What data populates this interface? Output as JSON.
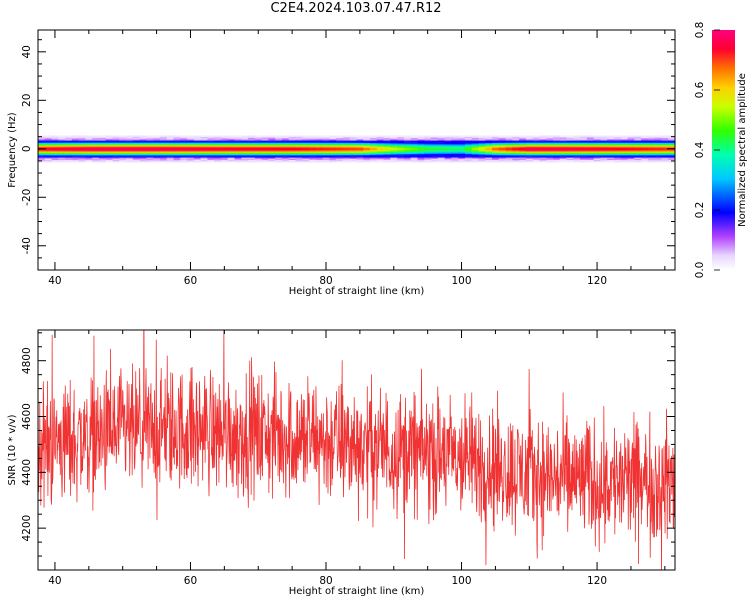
{
  "title": "C2E4.2024.103.07.47.R12",
  "chart_data": [
    {
      "type": "heatmap",
      "xlabel": "Height of straight line (km)",
      "ylabel": "Frequency (Hz)",
      "xlim": [
        37.5,
        131.5
      ],
      "ylim": [
        -50,
        49
      ],
      "xticks": [
        40,
        60,
        80,
        100,
        120
      ],
      "yticks": [
        -40,
        -20,
        0,
        20,
        40
      ],
      "colorbar": {
        "label": "Normalized spectral amplitude",
        "range": [
          0.0,
          0.8
        ],
        "ticks": [
          "0.0",
          "0.2",
          "0.4",
          "0.6",
          "0.8"
        ],
        "colormap": "gist_rainbow"
      },
      "band_center_hz": 0,
      "band_halfwidth_hz": 5,
      "amplitude_profile": {
        "x": [
          38,
          45,
          55,
          65,
          75,
          85,
          90,
          95,
          100,
          105,
          110,
          120,
          131
        ],
        "peak": [
          0.75,
          0.78,
          0.78,
          0.76,
          0.75,
          0.7,
          0.55,
          0.45,
          0.42,
          0.68,
          0.78,
          0.76,
          0.72
        ]
      }
    },
    {
      "type": "line",
      "xlabel": "Height of straight line (km)",
      "ylabel": "SNR (10 * v/v)",
      "xlim": [
        37.5,
        131.5
      ],
      "ylim": [
        4050,
        4910
      ],
      "xticks": [
        40,
        60,
        80,
        100,
        120
      ],
      "yticks": [
        4200,
        4400,
        4600,
        4800
      ],
      "series": [
        {
          "color": "#f03232",
          "trend": {
            "x": [
              38,
              50,
              60,
              70,
              80,
              90,
              95,
              100,
              105,
              110,
              115,
              120,
              131
            ],
            "y": [
              4500,
              4540,
              4555,
              4535,
              4510,
              4485,
              4470,
              4450,
              4420,
              4390,
              4380,
              4370,
              4360
            ]
          },
          "noise_amplitude": 120,
          "samples": 1800
        }
      ]
    }
  ],
  "colors": {
    "line": "#f03232",
    "axes": "#000000",
    "background": "#ffffff"
  }
}
